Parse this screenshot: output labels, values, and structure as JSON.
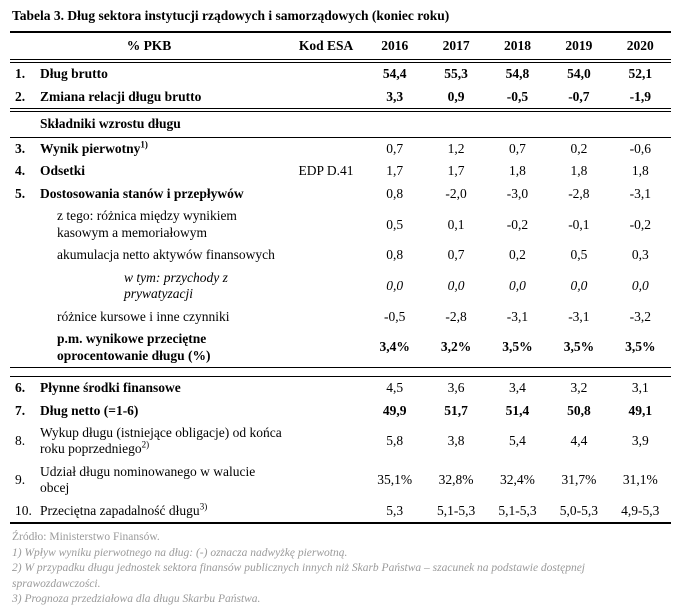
{
  "title": "Tabela 3. Dług sektora instytucji rządowych i samorządowych (koniec roku)",
  "table": {
    "header": {
      "pkb": "% PKB",
      "esa": "Kod ESA",
      "years": [
        "2016",
        "2017",
        "2018",
        "2019",
        "2020"
      ]
    },
    "section_header": "Składniki wzrostu długu",
    "rows": [
      {
        "num": "1.",
        "label": "Dług brutto",
        "values": [
          "54,4",
          "55,3",
          "54,8",
          "54,0",
          "52,1"
        ]
      },
      {
        "num": "2.",
        "label": "Zmiana relacji długu brutto",
        "values": [
          "3,3",
          "0,9",
          "-0,5",
          "-0,7",
          "-1,9"
        ]
      },
      {
        "num": "3.",
        "label": "Wynik pierwotny",
        "sup": "1)",
        "values": [
          "0,7",
          "1,2",
          "0,7",
          "0,2",
          "-0,6"
        ]
      },
      {
        "num": "4.",
        "label": "Odsetki",
        "esa": "EDP D.41",
        "values": [
          "1,7",
          "1,7",
          "1,8",
          "1,8",
          "1,8"
        ]
      },
      {
        "num": "5.",
        "label": "Dostosowania stanów i przepływów",
        "values": [
          "0,8",
          "-2,0",
          "-3,0",
          "-2,8",
          "-3,1"
        ]
      },
      {
        "label": "z tego: różnica między wynikiem kasowym a memoriałowym",
        "values": [
          "0,5",
          "0,1",
          "-0,2",
          "-0,1",
          "-0,2"
        ]
      },
      {
        "label": "akumulacja netto aktywów finansowych",
        "values": [
          "0,8",
          "0,7",
          "0,2",
          "0,5",
          "0,3"
        ]
      },
      {
        "label": "w tym: przychody z prywatyzacji",
        "values": [
          "0,0",
          "0,0",
          "0,0",
          "0,0",
          "0,0"
        ]
      },
      {
        "label": "różnice kursowe i inne czynniki",
        "values": [
          "-0,5",
          "-2,8",
          "-3,1",
          "-3,1",
          "-3,2"
        ]
      },
      {
        "label": "p.m. wynikowe przeciętne oprocentowanie długu (%)",
        "values": [
          "3,4%",
          "3,2%",
          "3,5%",
          "3,5%",
          "3,5%"
        ]
      },
      {
        "num": "6.",
        "label": "Płynne środki finansowe",
        "values": [
          "4,5",
          "3,6",
          "3,4",
          "3,2",
          "3,1"
        ]
      },
      {
        "num": "7.",
        "label": "Dług netto (=1-6)",
        "values": [
          "49,9",
          "51,7",
          "51,4",
          "50,8",
          "49,1"
        ]
      },
      {
        "num": "8.",
        "label": "Wykup długu (istniejące obligacje) od końca roku poprzedniego",
        "sup": "2)",
        "values": [
          "5,8",
          "3,8",
          "5,4",
          "4,4",
          "3,9"
        ]
      },
      {
        "num": "9.",
        "label": "Udział długu nominowanego w walucie obcej",
        "values": [
          "35,1%",
          "32,8%",
          "32,4%",
          "31,7%",
          "31,1%"
        ]
      },
      {
        "num": "10.",
        "label": "Przeciętna zapadalność długu",
        "sup": "3)",
        "values": [
          "5,3",
          "5,1-5,3",
          "5,1-5,3",
          "5,0-5,3",
          "4,9-5,3"
        ]
      }
    ]
  },
  "footnotes": {
    "source": "Źródło: Ministerstwo Finansów.",
    "notes": [
      "1) Wpływ wyniku pierwotnego na dług: (-) oznacza nadwyżkę pierwotną.",
      "2) W przypadku długu jednostek sektora finansów publicznych innych niż Skarb Państwa – szacunek na podstawie dostępnej sprawozdawczości.",
      "3) Prognoza przedziałowa dla długu Skarbu Państwa."
    ]
  },
  "colors": {
    "text": "#000000",
    "footnote_grey": "#9a9a9a",
    "background": "#ffffff"
  }
}
